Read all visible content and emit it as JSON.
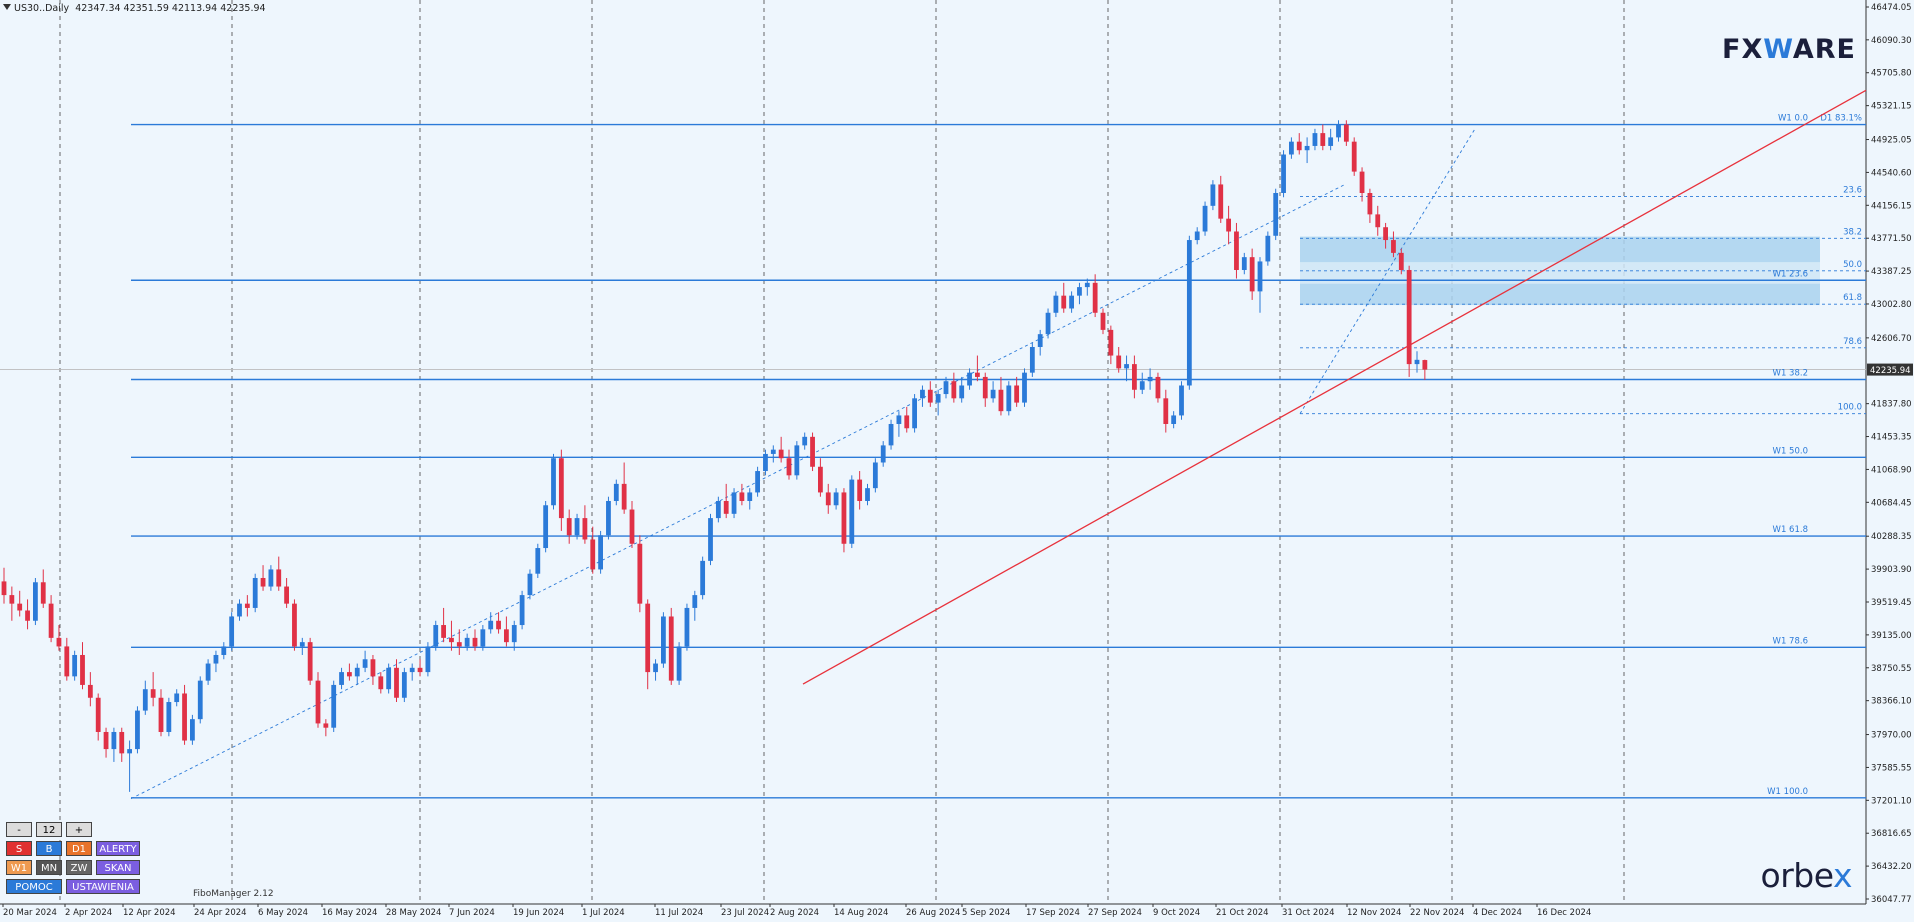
{
  "header": {
    "symbol": "US30..Daily",
    "ohlc": "42347.34 42351.59 42113.94 42235.94"
  },
  "logos": {
    "brand_top_a": "FX",
    "brand_top_w": "W",
    "brand_top_b": "ARE",
    "brand_bottom_a": "orbe",
    "brand_bottom_x": "x"
  },
  "indicator_label": "FiboManager 2.12",
  "panel": {
    "minus": "-",
    "count": "12",
    "plus": "+",
    "s": "S",
    "b": "B",
    "d1": "D1",
    "alerty": "ALERTY",
    "w1": "W1",
    "mn": "MN",
    "zw": "ZW",
    "skan": "SKAN",
    "pomoc": "POMOC",
    "ustawienia": "USTAWIENIA"
  },
  "colors": {
    "background": "#eef6fd",
    "bull": "#2b7ad8",
    "bear": "#e03146",
    "trend": "#e8323c",
    "level": "#2b7ad8",
    "zone": "#a9d2ee"
  },
  "chart_data": {
    "type": "candlestick",
    "symbol": "US30",
    "timeframe": "Daily",
    "current_price": "42235.94",
    "ylim": [
      36047.77,
      46474.05
    ],
    "y_ticks": [
      "46474.05",
      "46090.30",
      "45705.80",
      "45321.15",
      "44925.05",
      "44540.60",
      "44156.15",
      "43771.50",
      "43387.25",
      "43002.80",
      "42606.70",
      "42235.94",
      "41837.80",
      "41453.35",
      "41068.90",
      "40684.45",
      "40288.35",
      "39903.90",
      "39519.45",
      "39135.00",
      "38750.55",
      "38366.10",
      "37970.00",
      "37585.55",
      "37201.10",
      "36816.65",
      "36432.20",
      "36047.77"
    ],
    "x_ticks": [
      "20 Mar 2024",
      "2 Apr 2024",
      "12 Apr 2024",
      "24 Apr 2024",
      "6 May 2024",
      "16 May 2024",
      "28 May 2024",
      "7 Jun 2024",
      "19 Jun 2024",
      "1 Jul 2024",
      "11 Jul 2024",
      "23 Jul 2024",
      "2 Aug 2024",
      "14 Aug 2024",
      "26 Aug 2024",
      "5 Sep 2024",
      "17 Sep 2024",
      "27 Sep 2024",
      "9 Oct 2024",
      "21 Oct 2024",
      "31 Oct 2024",
      "12 Nov 2024",
      "22 Nov 2024",
      "4 Dec 2024",
      "16 Dec 2024"
    ],
    "weekly_levels": [
      {
        "label": "W1 0.0",
        "value": 45100
      },
      {
        "label": "W1 23.6",
        "value": 43280
      },
      {
        "label": "W1 38.2",
        "value": 42120
      },
      {
        "label": "W1 50.0",
        "value": 41210
      },
      {
        "label": "W1 61.8",
        "value": 40290
      },
      {
        "label": "W1 78.6",
        "value": 38990
      },
      {
        "label": "W1 100.0",
        "value": 37230
      }
    ],
    "daily_note": "D1 83.1%",
    "daily_fibo": [
      {
        "label": "23.6",
        "value": 44260
      },
      {
        "label": "38.2",
        "value": 43770
      },
      {
        "label": "50.0",
        "value": 43390
      },
      {
        "label": "61.8",
        "value": 43000
      },
      {
        "label": "78.6",
        "value": 42490
      },
      {
        "label": "100.0",
        "value": 41720
      }
    ],
    "candles": [
      [
        39760,
        39920,
        39500,
        39600
      ],
      [
        39600,
        39700,
        39300,
        39500
      ],
      [
        39500,
        39650,
        39350,
        39420
      ],
      [
        39420,
        39550,
        39200,
        39300
      ],
      [
        39300,
        39800,
        39250,
        39750
      ],
      [
        39750,
        39900,
        39450,
        39500
      ],
      [
        39500,
        39600,
        39050,
        39100
      ],
      [
        39100,
        39250,
        38950,
        39000
      ],
      [
        39000,
        39100,
        38600,
        38650
      ],
      [
        38650,
        38950,
        38600,
        38900
      ],
      [
        38900,
        39050,
        38500,
        38550
      ],
      [
        38550,
        38700,
        38300,
        38400
      ],
      [
        38400,
        38450,
        37900,
        38000
      ],
      [
        38000,
        38050,
        37700,
        37800
      ],
      [
        37800,
        38050,
        37650,
        38000
      ],
      [
        38000,
        38050,
        37650,
        37750
      ],
      [
        37750,
        37900,
        37300,
        37800
      ],
      [
        37800,
        38300,
        37750,
        38250
      ],
      [
        38250,
        38600,
        38200,
        38500
      ],
      [
        38500,
        38700,
        38300,
        38400
      ],
      [
        38400,
        38500,
        37950,
        38000
      ],
      [
        38000,
        38400,
        37950,
        38350
      ],
      [
        38350,
        38500,
        38300,
        38450
      ],
      [
        38450,
        38550,
        37850,
        37900
      ],
      [
        37900,
        38200,
        37850,
        38150
      ],
      [
        38150,
        38650,
        38100,
        38600
      ],
      [
        38600,
        38850,
        38550,
        38800
      ],
      [
        38800,
        38950,
        38700,
        38900
      ],
      [
        38900,
        39050,
        38850,
        39000
      ],
      [
        39000,
        39400,
        38950,
        39350
      ],
      [
        39350,
        39550,
        39300,
        39500
      ],
      [
        39500,
        39600,
        39350,
        39450
      ],
      [
        39450,
        39850,
        39400,
        39800
      ],
      [
        39800,
        39950,
        39650,
        39700
      ],
      [
        39700,
        39950,
        39650,
        39900
      ],
      [
        39900,
        40050,
        39650,
        39700
      ],
      [
        39700,
        39800,
        39450,
        39500
      ],
      [
        39500,
        39550,
        38950,
        39000
      ],
      [
        39000,
        39100,
        38900,
        39050
      ],
      [
        39050,
        39100,
        38550,
        38600
      ],
      [
        38600,
        38700,
        38050,
        38100
      ],
      [
        38100,
        38150,
        37950,
        38050
      ],
      [
        38050,
        38600,
        38000,
        38550
      ],
      [
        38550,
        38750,
        38500,
        38700
      ],
      [
        38700,
        38800,
        38600,
        38650
      ],
      [
        38650,
        38800,
        38550,
        38750
      ],
      [
        38750,
        38950,
        38700,
        38850
      ],
      [
        38850,
        38900,
        38550,
        38650
      ],
      [
        38650,
        38700,
        38450,
        38500
      ],
      [
        38500,
        38800,
        38450,
        38750
      ],
      [
        38750,
        38850,
        38350,
        38400
      ],
      [
        38400,
        38750,
        38350,
        38700
      ],
      [
        38700,
        38800,
        38600,
        38750
      ],
      [
        38750,
        38850,
        38650,
        38700
      ],
      [
        38700,
        39050,
        38650,
        39000
      ],
      [
        39000,
        39300,
        38950,
        39250
      ],
      [
        39250,
        39450,
        39050,
        39100
      ],
      [
        39100,
        39300,
        38950,
        39050
      ],
      [
        39050,
        39200,
        38900,
        39000
      ],
      [
        39000,
        39150,
        38950,
        39100
      ],
      [
        39100,
        39200,
        38950,
        39000
      ],
      [
        39000,
        39250,
        38950,
        39200
      ],
      [
        39200,
        39400,
        39150,
        39300
      ],
      [
        39300,
        39400,
        39150,
        39200
      ],
      [
        39200,
        39350,
        39000,
        39050
      ],
      [
        39050,
        39300,
        38950,
        39250
      ],
      [
        39250,
        39650,
        39200,
        39600
      ],
      [
        39600,
        39900,
        39550,
        39850
      ],
      [
        39850,
        40200,
        39800,
        40150
      ],
      [
        40150,
        40700,
        40100,
        40650
      ],
      [
        40650,
        41250,
        40600,
        41200
      ],
      [
        41200,
        41300,
        40350,
        40500
      ],
      [
        40500,
        40600,
        40200,
        40300
      ],
      [
        40300,
        40550,
        40250,
        40500
      ],
      [
        40500,
        40650,
        40200,
        40250
      ],
      [
        40250,
        40400,
        39850,
        39900
      ],
      [
        39900,
        40350,
        39850,
        40300
      ],
      [
        40300,
        40750,
        40250,
        40700
      ],
      [
        40700,
        40950,
        40650,
        40900
      ],
      [
        40900,
        41150,
        40550,
        40600
      ],
      [
        40600,
        40700,
        40150,
        40200
      ],
      [
        40200,
        40300,
        39400,
        39500
      ],
      [
        39500,
        39550,
        38500,
        38700
      ],
      [
        38700,
        38850,
        38600,
        38800
      ],
      [
        38800,
        39400,
        38750,
        39350
      ],
      [
        39350,
        39450,
        38550,
        38600
      ],
      [
        38600,
        39050,
        38550,
        39000
      ],
      [
        39000,
        39500,
        38950,
        39450
      ],
      [
        39450,
        39650,
        39300,
        39600
      ],
      [
        39600,
        40050,
        39550,
        40000
      ],
      [
        40000,
        40550,
        39950,
        40500
      ],
      [
        40500,
        40750,
        40450,
        40700
      ],
      [
        40700,
        40900,
        40500,
        40550
      ],
      [
        40550,
        40850,
        40500,
        40800
      ],
      [
        40800,
        40900,
        40650,
        40700
      ],
      [
        40700,
        40850,
        40600,
        40800
      ],
      [
        40800,
        41100,
        40750,
        41050
      ],
      [
        41050,
        41300,
        41000,
        41250
      ],
      [
        41250,
        41350,
        41150,
        41300
      ],
      [
        41300,
        41450,
        41150,
        41200
      ],
      [
        41200,
        41300,
        40950,
        41000
      ],
      [
        41000,
        41400,
        40950,
        41350
      ],
      [
        41350,
        41500,
        41300,
        41450
      ],
      [
        41450,
        41500,
        41050,
        41100
      ],
      [
        41100,
        41200,
        40750,
        40800
      ],
      [
        40800,
        40900,
        40550,
        40650
      ],
      [
        40650,
        40850,
        40600,
        40800
      ],
      [
        40800,
        40850,
        40100,
        40200
      ],
      [
        40200,
        41000,
        40150,
        40950
      ],
      [
        40950,
        41050,
        40600,
        40700
      ],
      [
        40700,
        40900,
        40650,
        40850
      ],
      [
        40850,
        41200,
        40800,
        41150
      ],
      [
        41150,
        41400,
        41100,
        41350
      ],
      [
        41350,
        41650,
        41300,
        41600
      ],
      [
        41600,
        41750,
        41450,
        41700
      ],
      [
        41700,
        41800,
        41500,
        41550
      ],
      [
        41550,
        41950,
        41500,
        41900
      ],
      [
        41900,
        42050,
        41800,
        42000
      ],
      [
        42000,
        42100,
        41800,
        41850
      ],
      [
        41850,
        42000,
        41700,
        41950
      ],
      [
        41950,
        42150,
        41900,
        42100
      ],
      [
        42100,
        42200,
        41850,
        41900
      ],
      [
        41900,
        42150,
        41850,
        42050
      ],
      [
        42050,
        42250,
        42000,
        42200
      ],
      [
        42200,
        42400,
        42100,
        42150
      ],
      [
        42150,
        42200,
        41800,
        41900
      ],
      [
        41900,
        42100,
        41850,
        42000
      ],
      [
        42000,
        42150,
        41700,
        41750
      ],
      [
        41750,
        42100,
        41700,
        42050
      ],
      [
        42050,
        42150,
        41800,
        41850
      ],
      [
        41850,
        42250,
        41800,
        42200
      ],
      [
        42200,
        42550,
        42150,
        42500
      ],
      [
        42500,
        42700,
        42400,
        42650
      ],
      [
        42650,
        42950,
        42600,
        42900
      ],
      [
        42900,
        43150,
        42850,
        43100
      ],
      [
        43100,
        43250,
        42900,
        42950
      ],
      [
        42950,
        43150,
        42900,
        43100
      ],
      [
        43100,
        43250,
        43000,
        43200
      ],
      [
        43200,
        43300,
        43100,
        43250
      ],
      [
        43250,
        43350,
        42850,
        42900
      ],
      [
        42900,
        42950,
        42650,
        42700
      ],
      [
        42700,
        42750,
        42300,
        42400
      ],
      [
        42400,
        42500,
        42200,
        42250
      ],
      [
        42250,
        42400,
        42100,
        42300
      ],
      [
        42300,
        42400,
        41900,
        42000
      ],
      [
        42000,
        42200,
        41950,
        42100
      ],
      [
        42100,
        42250,
        42000,
        42150
      ],
      [
        42150,
        42200,
        41850,
        41900
      ],
      [
        41900,
        42000,
        41500,
        41600
      ],
      [
        41600,
        41750,
        41550,
        41700
      ],
      [
        41700,
        42100,
        41650,
        42050
      ],
      [
        42050,
        43800,
        42000,
        43750
      ],
      [
        43750,
        43900,
        43700,
        43850
      ],
      [
        43850,
        44200,
        43800,
        44150
      ],
      [
        44150,
        44450,
        44100,
        44400
      ],
      [
        44400,
        44500,
        43950,
        44000
      ],
      [
        44000,
        44150,
        43700,
        43850
      ],
      [
        43850,
        43950,
        43300,
        43400
      ],
      [
        43400,
        43600,
        43350,
        43550
      ],
      [
        43550,
        43650,
        43050,
        43150
      ],
      [
        43150,
        43550,
        42900,
        43500
      ],
      [
        43500,
        43850,
        43450,
        43800
      ],
      [
        43800,
        44350,
        43750,
        44300
      ],
      [
        44300,
        44800,
        44250,
        44750
      ],
      [
        44750,
        44950,
        44700,
        44900
      ],
      [
        44900,
        45000,
        44750,
        44800
      ],
      [
        44800,
        44950,
        44650,
        44850
      ],
      [
        44850,
        45050,
        44800,
        45000
      ],
      [
        45000,
        45100,
        44800,
        44850
      ],
      [
        44850,
        45050,
        44800,
        44950
      ],
      [
        44950,
        45150,
        44900,
        45100
      ],
      [
        45100,
        45150,
        44850,
        44900
      ],
      [
        44900,
        44950,
        44500,
        44550
      ],
      [
        44550,
        44600,
        44200,
        44300
      ],
      [
        44300,
        44350,
        43950,
        44050
      ],
      [
        44050,
        44150,
        43800,
        43900
      ],
      [
        43900,
        43950,
        43650,
        43750
      ],
      [
        43750,
        43850,
        43550,
        43600
      ],
      [
        43600,
        43650,
        43350,
        43400
      ],
      [
        43400,
        43450,
        42150,
        42300
      ],
      [
        42300,
        42450,
        42200,
        42350
      ],
      [
        42347.34,
        42351.59,
        42113.94,
        42235.94
      ]
    ]
  }
}
